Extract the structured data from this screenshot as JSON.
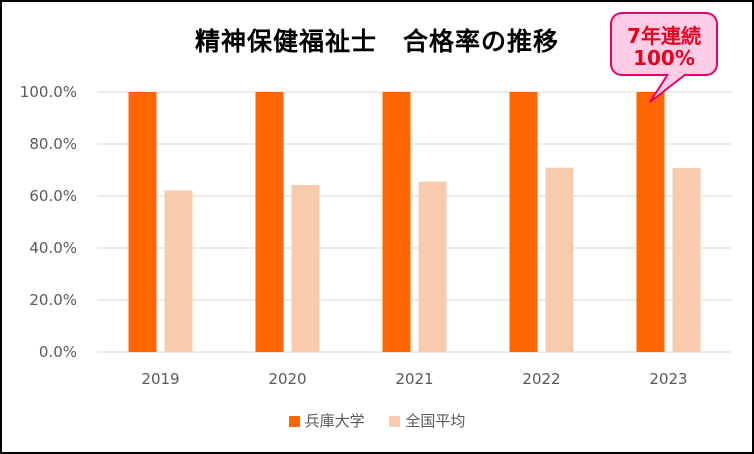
{
  "chart_data": {
    "type": "bar",
    "title": "精神保健福祉士　合格率の推移",
    "categories": [
      "2019",
      "2020",
      "2021",
      "2022",
      "2023"
    ],
    "series": [
      {
        "name": "兵庫大学",
        "color": "#ff6600",
        "values": [
          100,
          100,
          100,
          100,
          100
        ]
      },
      {
        "name": "全国平均",
        "color": "#f8cbad",
        "values": [
          62.1,
          64.2,
          65.5,
          70.9,
          70.8
        ]
      }
    ],
    "ylim": [
      0,
      100
    ],
    "yticks": [
      "0.0%",
      "20.0%",
      "40.0%",
      "60.0%",
      "80.0%",
      "100.0%"
    ],
    "grid": true,
    "legend_position": "bottom",
    "annotation": {
      "line1": "7年連続",
      "line2": "100%"
    }
  }
}
